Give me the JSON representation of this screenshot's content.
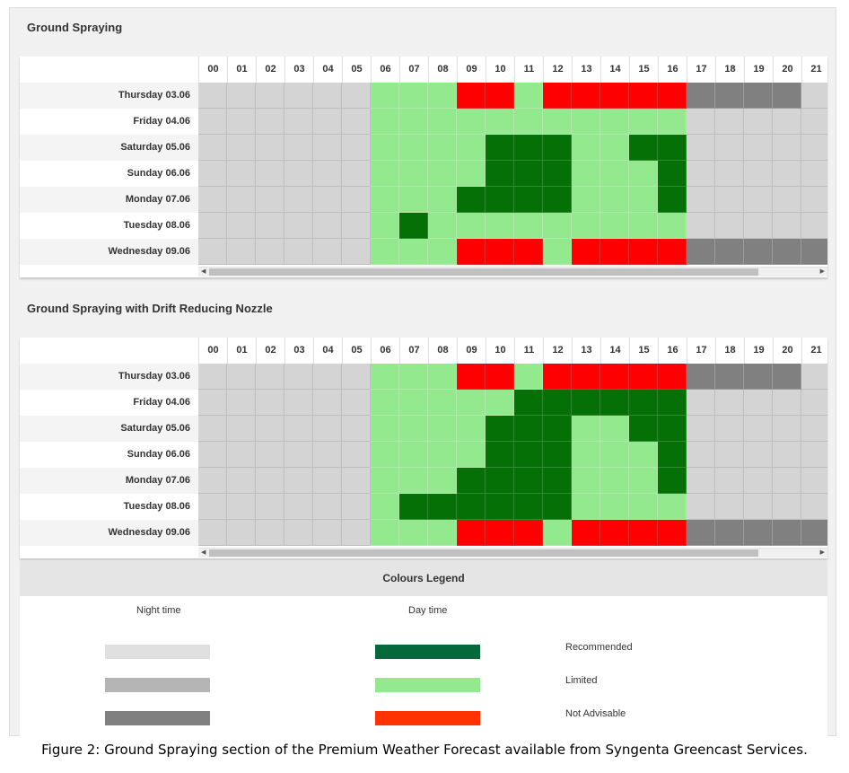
{
  "sections": [
    {
      "title": "Ground Spraying"
    },
    {
      "title": "Ground Spraying with Drift Reducing Nozzle"
    }
  ],
  "legend": {
    "title": "Colours Legend",
    "night_title": "Night time",
    "day_title": "Day time",
    "items": [
      {
        "label": "Recommended",
        "night_color": "#e0e0e0",
        "day_color": "#046a3c"
      },
      {
        "label": "Limited",
        "night_color": "#b5b5b5",
        "day_color": "#93ea8e"
      },
      {
        "label": "Not Advisable",
        "night_color": "#808080",
        "day_color": "#ff3300"
      }
    ]
  },
  "caption": "Figure 2: Ground Spraying section of the Premium Weather Forecast available from Syngenta Greencast Services.",
  "colors": {
    "night_light": "#d4d4d4",
    "night_dark": "#808080",
    "recommended": "#047005",
    "limited": "#93ea8e",
    "not_advisable": "#ff0000"
  },
  "chart_data": [
    {
      "type": "heatmap",
      "title": "Ground Spraying",
      "x": [
        "00",
        "01",
        "02",
        "03",
        "04",
        "05",
        "06",
        "07",
        "08",
        "09",
        "10",
        "11",
        "12",
        "13",
        "14",
        "15",
        "16",
        "17",
        "18",
        "19",
        "20",
        "21"
      ],
      "y": [
        "Thursday 03.06",
        "Friday 04.06",
        "Saturday 05.06",
        "Sunday 06.06",
        "Monday 07.06",
        "Tuesday 08.06",
        "Wednesday 09.06"
      ],
      "key": {
        "N": "night (limited)",
        "D": "night (not advisable)",
        "R": "Recommended",
        "L": "Limited",
        "X": "Not Advisable"
      },
      "values": [
        [
          "N",
          "N",
          "N",
          "N",
          "N",
          "N",
          "L",
          "L",
          "L",
          "X",
          "X",
          "L",
          "X",
          "X",
          "X",
          "X",
          "X",
          "D",
          "D",
          "D",
          "D",
          "N"
        ],
        [
          "N",
          "N",
          "N",
          "N",
          "N",
          "N",
          "L",
          "L",
          "L",
          "L",
          "L",
          "L",
          "L",
          "L",
          "L",
          "L",
          "L",
          "N",
          "N",
          "N",
          "N",
          "N"
        ],
        [
          "N",
          "N",
          "N",
          "N",
          "N",
          "N",
          "L",
          "L",
          "L",
          "L",
          "R",
          "R",
          "R",
          "L",
          "L",
          "R",
          "R",
          "N",
          "N",
          "N",
          "N",
          "N"
        ],
        [
          "N",
          "N",
          "N",
          "N",
          "N",
          "N",
          "L",
          "L",
          "L",
          "L",
          "R",
          "R",
          "R",
          "L",
          "L",
          "L",
          "R",
          "N",
          "N",
          "N",
          "N",
          "N"
        ],
        [
          "N",
          "N",
          "N",
          "N",
          "N",
          "N",
          "L",
          "L",
          "L",
          "R",
          "R",
          "R",
          "R",
          "L",
          "L",
          "L",
          "R",
          "N",
          "N",
          "N",
          "N",
          "N"
        ],
        [
          "N",
          "N",
          "N",
          "N",
          "N",
          "N",
          "L",
          "R",
          "L",
          "L",
          "L",
          "L",
          "L",
          "L",
          "L",
          "L",
          "L",
          "N",
          "N",
          "N",
          "N",
          "N"
        ],
        [
          "N",
          "N",
          "N",
          "N",
          "N",
          "N",
          "L",
          "L",
          "L",
          "X",
          "X",
          "X",
          "L",
          "X",
          "X",
          "X",
          "X",
          "D",
          "D",
          "D",
          "D",
          "D"
        ]
      ]
    },
    {
      "type": "heatmap",
      "title": "Ground Spraying with Drift Reducing Nozzle",
      "x": [
        "00",
        "01",
        "02",
        "03",
        "04",
        "05",
        "06",
        "07",
        "08",
        "09",
        "10",
        "11",
        "12",
        "13",
        "14",
        "15",
        "16",
        "17",
        "18",
        "19",
        "20",
        "21"
      ],
      "y": [
        "Thursday 03.06",
        "Friday 04.06",
        "Saturday 05.06",
        "Sunday 06.06",
        "Monday 07.06",
        "Tuesday 08.06",
        "Wednesday 09.06"
      ],
      "key": {
        "N": "night (limited)",
        "D": "night (not advisable)",
        "R": "Recommended",
        "L": "Limited",
        "X": "Not Advisable"
      },
      "values": [
        [
          "N",
          "N",
          "N",
          "N",
          "N",
          "N",
          "L",
          "L",
          "L",
          "X",
          "X",
          "L",
          "X",
          "X",
          "X",
          "X",
          "X",
          "D",
          "D",
          "D",
          "D",
          "N"
        ],
        [
          "N",
          "N",
          "N",
          "N",
          "N",
          "N",
          "L",
          "L",
          "L",
          "L",
          "L",
          "R",
          "R",
          "R",
          "R",
          "R",
          "R",
          "N",
          "N",
          "N",
          "N",
          "N"
        ],
        [
          "N",
          "N",
          "N",
          "N",
          "N",
          "N",
          "L",
          "L",
          "L",
          "L",
          "R",
          "R",
          "R",
          "L",
          "L",
          "R",
          "R",
          "N",
          "N",
          "N",
          "N",
          "N"
        ],
        [
          "N",
          "N",
          "N",
          "N",
          "N",
          "N",
          "L",
          "L",
          "L",
          "L",
          "R",
          "R",
          "R",
          "L",
          "L",
          "L",
          "R",
          "N",
          "N",
          "N",
          "N",
          "N"
        ],
        [
          "N",
          "N",
          "N",
          "N",
          "N",
          "N",
          "L",
          "L",
          "L",
          "R",
          "R",
          "R",
          "R",
          "L",
          "L",
          "L",
          "R",
          "N",
          "N",
          "N",
          "N",
          "N"
        ],
        [
          "N",
          "N",
          "N",
          "N",
          "N",
          "N",
          "L",
          "R",
          "R",
          "R",
          "R",
          "R",
          "R",
          "L",
          "L",
          "L",
          "L",
          "N",
          "N",
          "N",
          "N",
          "N"
        ],
        [
          "N",
          "N",
          "N",
          "N",
          "N",
          "N",
          "L",
          "L",
          "L",
          "X",
          "X",
          "X",
          "L",
          "X",
          "X",
          "X",
          "X",
          "D",
          "D",
          "D",
          "D",
          "D"
        ]
      ]
    }
  ]
}
